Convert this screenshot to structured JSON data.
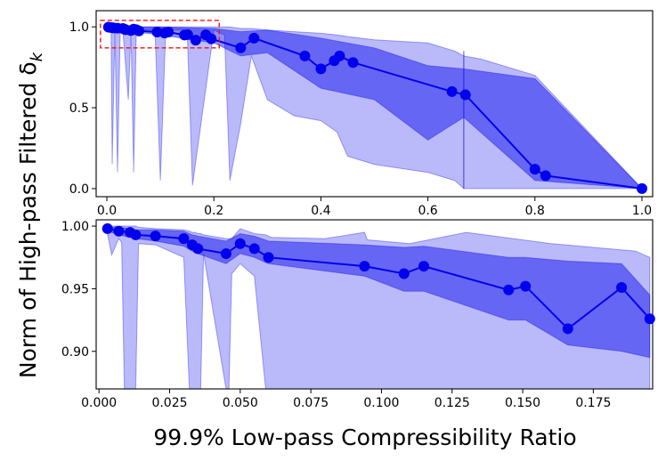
{
  "chart_data": [
    {
      "type": "line",
      "panel": "top",
      "xlim": [
        -0.02,
        1.02
      ],
      "ylim": [
        -0.05,
        1.1
      ],
      "xticks": [
        0.0,
        0.2,
        0.4,
        0.6,
        0.8,
        1.0
      ],
      "xtick_labels": [
        "0.0",
        "0.2",
        "0.4",
        "0.6",
        "0.8",
        "1.0"
      ],
      "yticks": [
        0.0,
        0.5,
        1.0
      ],
      "ytick_labels": [
        "0.0",
        "0.5",
        "1.0"
      ],
      "color": "#0000ee",
      "series": [
        {
          "name": "median",
          "x": [
            0.003,
            0.007,
            0.011,
            0.013,
            0.02,
            0.03,
            0.033,
            0.035,
            0.045,
            0.05,
            0.055,
            0.06,
            0.094,
            0.108,
            0.115,
            0.145,
            0.151,
            0.166,
            0.185,
            0.195,
            0.25,
            0.275,
            0.37,
            0.4,
            0.425,
            0.435,
            0.46,
            0.645,
            0.67,
            0.8,
            0.82,
            1.0
          ],
          "y": [
            0.998,
            0.996,
            0.995,
            0.993,
            0.992,
            0.99,
            0.985,
            0.982,
            0.978,
            0.986,
            0.982,
            0.975,
            0.968,
            0.962,
            0.968,
            0.949,
            0.952,
            0.918,
            0.951,
            0.926,
            0.87,
            0.93,
            0.82,
            0.74,
            0.79,
            0.82,
            0.78,
            0.6,
            0.58,
            0.12,
            0.08,
            0.0
          ]
        }
      ],
      "band_inner": {
        "x": [
          0.0,
          0.05,
          0.1,
          0.2,
          0.25,
          0.3,
          0.4,
          0.5,
          0.6,
          0.667,
          0.8,
          1.0
        ],
        "upper": [
          1.0,
          1.0,
          1.0,
          0.99,
          0.97,
          0.98,
          0.93,
          0.87,
          0.76,
          0.74,
          0.68,
          0.0
        ],
        "lower": [
          0.99,
          0.97,
          0.95,
          0.9,
          0.82,
          0.84,
          0.62,
          0.55,
          0.3,
          0.44,
          0.05,
          0.0
        ]
      },
      "band_outer": {
        "x": [
          0.0,
          0.008,
          0.01,
          0.015,
          0.02,
          0.025,
          0.03,
          0.04,
          0.045,
          0.05,
          0.055,
          0.06,
          0.09,
          0.1,
          0.11,
          0.15,
          0.16,
          0.2,
          0.22,
          0.23,
          0.25,
          0.27,
          0.3,
          0.35,
          0.4,
          0.43,
          0.45,
          0.5,
          0.6,
          0.65,
          0.667,
          0.7,
          0.8,
          1.0
        ],
        "upper": [
          1.0,
          1.0,
          1.0,
          1.0,
          1.0,
          1.0,
          1.0,
          1.0,
          1.0,
          1.0,
          1.0,
          1.0,
          1.0,
          1.0,
          1.0,
          1.0,
          1.0,
          1.0,
          1.0,
          1.0,
          0.99,
          0.99,
          0.98,
          0.97,
          0.96,
          0.95,
          0.94,
          0.92,
          0.9,
          0.85,
          0.82,
          0.8,
          0.7,
          0.0
        ],
        "lower": [
          1.0,
          0.98,
          0.15,
          0.98,
          0.1,
          0.98,
          0.98,
          0.55,
          0.98,
          0.1,
          0.98,
          0.98,
          0.98,
          0.05,
          0.98,
          0.98,
          0.02,
          0.98,
          0.95,
          0.05,
          0.4,
          0.82,
          0.55,
          0.45,
          0.42,
          0.35,
          0.2,
          0.15,
          0.1,
          0.05,
          0.0,
          0.0,
          0.0,
          0.0
        ]
      }
    },
    {
      "type": "line",
      "panel": "bottom",
      "xlim": [
        -0.001,
        0.196
      ],
      "ylim": [
        0.87,
        1.005
      ],
      "xticks": [
        0.0,
        0.025,
        0.05,
        0.075,
        0.1,
        0.125,
        0.15,
        0.175
      ],
      "xtick_labels": [
        "0.000",
        "0.025",
        "0.050",
        "0.075",
        "0.100",
        "0.125",
        "0.150",
        "0.175"
      ],
      "yticks": [
        0.9,
        0.95,
        1.0
      ],
      "ytick_labels": [
        "0.90",
        "0.95",
        "1.00"
      ],
      "color": "#0000ee",
      "series": [
        {
          "name": "median",
          "x": [
            0.003,
            0.007,
            0.011,
            0.013,
            0.02,
            0.03,
            0.033,
            0.035,
            0.045,
            0.05,
            0.055,
            0.06,
            0.094,
            0.108,
            0.115,
            0.145,
            0.151,
            0.166,
            0.185,
            0.195
          ],
          "y": [
            0.998,
            0.996,
            0.995,
            0.993,
            0.992,
            0.99,
            0.985,
            0.982,
            0.978,
            0.986,
            0.982,
            0.975,
            0.968,
            0.962,
            0.968,
            0.949,
            0.952,
            0.918,
            0.951,
            0.926
          ]
        }
      ],
      "band_inner": {
        "x": [
          0.003,
          0.007,
          0.011,
          0.013,
          0.02,
          0.03,
          0.033,
          0.035,
          0.045,
          0.05,
          0.055,
          0.06,
          0.094,
          0.108,
          0.115,
          0.145,
          0.151,
          0.166,
          0.185,
          0.195
        ],
        "upper": [
          0.999,
          0.999,
          0.998,
          0.997,
          0.997,
          0.996,
          0.993,
          0.992,
          0.988,
          0.994,
          0.992,
          0.988,
          0.985,
          0.983,
          0.984,
          0.975,
          0.975,
          0.972,
          0.97,
          0.945
        ],
        "lower": [
          0.996,
          0.993,
          0.991,
          0.99,
          0.988,
          0.984,
          0.98,
          0.978,
          0.97,
          0.978,
          0.975,
          0.97,
          0.96,
          0.948,
          0.948,
          0.925,
          0.925,
          0.905,
          0.9,
          0.895
        ]
      },
      "band_outer": {
        "x": [
          0.003,
          0.0045,
          0.007,
          0.008,
          0.009,
          0.0095,
          0.011,
          0.012,
          0.013,
          0.014,
          0.02,
          0.03,
          0.032,
          0.033,
          0.034,
          0.035,
          0.036,
          0.037,
          0.045,
          0.046,
          0.047,
          0.05,
          0.055,
          0.059,
          0.06,
          0.061,
          0.08,
          0.094,
          0.095,
          0.11,
          0.13,
          0.16,
          0.19,
          0.195
        ],
        "upper": [
          1.0,
          1.0,
          1.0,
          1.0,
          1.0,
          1.0,
          1.0,
          1.0,
          1.0,
          0.999,
          0.998,
          0.997,
          0.996,
          0.995,
          0.995,
          0.994,
          0.994,
          0.993,
          0.99,
          0.99,
          0.99,
          0.998,
          0.994,
          0.993,
          0.992,
          0.991,
          0.99,
          0.995,
          0.989,
          0.986,
          0.995,
          0.986,
          0.98,
          0.975
        ],
        "lower": [
          0.994,
          0.977,
          0.99,
          0.987,
          0.87,
          0.87,
          0.87,
          0.87,
          0.87,
          0.986,
          0.985,
          0.975,
          0.87,
          0.87,
          0.87,
          0.87,
          0.87,
          0.978,
          0.87,
          0.87,
          0.962,
          0.97,
          0.96,
          0.87,
          0.87,
          0.87,
          0.87,
          0.87,
          0.87,
          0.87,
          0.87,
          0.87,
          0.87,
          0.87
        ]
      }
    }
  ],
  "axes": {
    "xlabel": "99.9% Low-pass Compressibility Ratio",
    "ylabel": "Norm of High-pass Filtered δ",
    "ylabel_subscript": "k"
  },
  "colors": {
    "line": "#0000ee",
    "band_outer": "#0000ee",
    "band_inner": "#0000ee",
    "zoom_box": "#ee1111"
  }
}
